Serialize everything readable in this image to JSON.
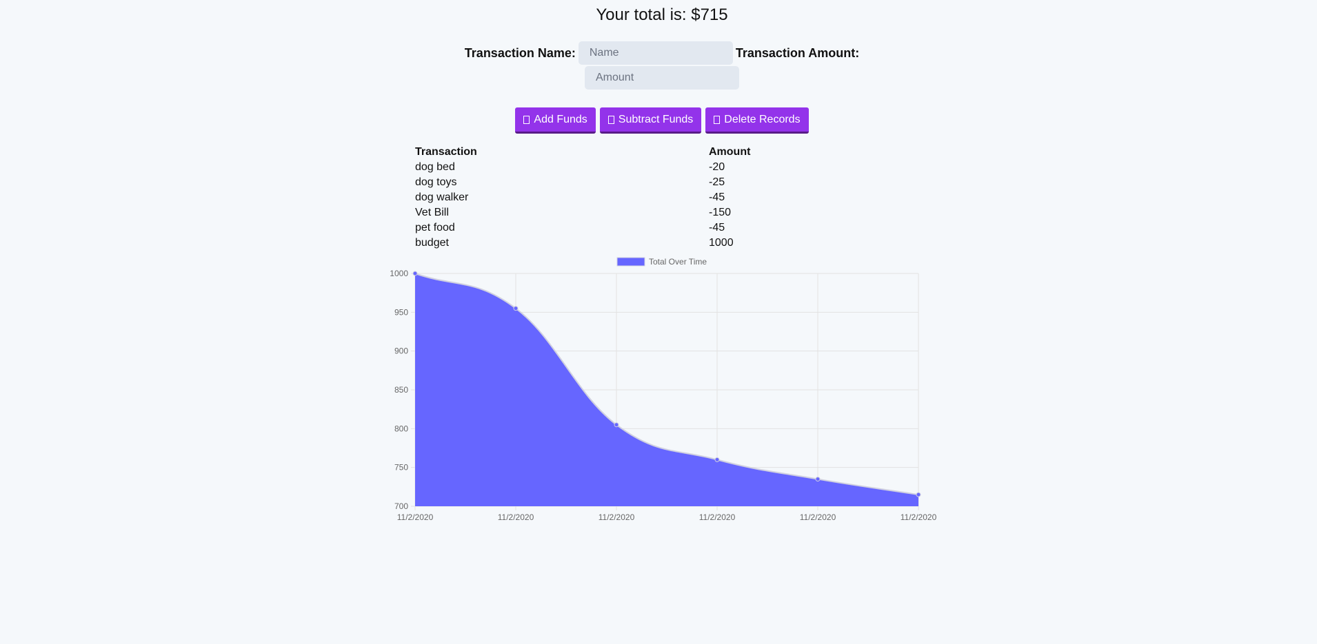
{
  "header": {
    "total_text": "Your total is: $715"
  },
  "form": {
    "name_label": "Transaction Name:",
    "name_placeholder": "Name",
    "amount_label": "Transaction Amount:",
    "amount_placeholder": "Amount"
  },
  "buttons": {
    "add_label": "Add Funds",
    "subtract_label": "Subtract Funds",
    "delete_label": "Delete Records"
  },
  "table": {
    "headers": [
      "Transaction",
      "Amount"
    ],
    "rows": [
      [
        "dog bed",
        "-20"
      ],
      [
        "dog toys",
        "-25"
      ],
      [
        "dog walker",
        "-45"
      ],
      [
        "Vet Bill",
        "-150"
      ],
      [
        "pet food",
        "-45"
      ],
      [
        "budget",
        "1000"
      ]
    ]
  },
  "chart_data": {
    "type": "area",
    "x": [
      "11/2/2020",
      "11/2/2020",
      "11/2/2020",
      "11/2/2020",
      "11/2/2020",
      "11/2/2020"
    ],
    "series": [
      {
        "name": "Total Over Time",
        "values": [
          1000,
          955,
          805,
          760,
          735,
          715
        ]
      }
    ],
    "yticks": [
      700,
      750,
      800,
      850,
      900,
      950,
      1000
    ],
    "ylim": [
      700,
      1000
    ],
    "grid": true,
    "legend": "top",
    "fill_color": "#6666ff",
    "line_color": "#d0d0e0"
  }
}
